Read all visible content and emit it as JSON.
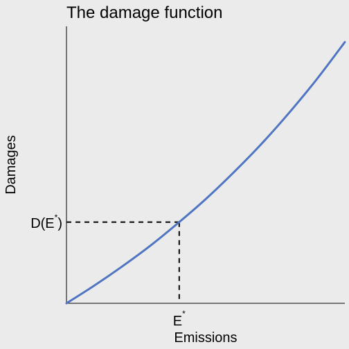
{
  "chart_data": {
    "type": "line",
    "title": "The damage function",
    "xlabel": "Emissions",
    "ylabel": "Damages",
    "xlim": [
      0,
      1
    ],
    "ylim": [
      0,
      1
    ],
    "grid": false,
    "legend": "none",
    "series": [
      {
        "function": "exponential",
        "x": [
          0,
          0.1,
          0.2,
          0.3,
          0.4,
          0.5,
          0.6,
          0.7,
          0.8,
          0.9,
          1.0
        ],
        "y": [
          0,
          0.064,
          0.133,
          0.207,
          0.289,
          0.376,
          0.472,
          0.575,
          0.688,
          0.81,
          0.943
        ],
        "color": "#4f75c2"
      }
    ],
    "marked_point": {
      "x": 0.405,
      "y": 0.293,
      "x_tick_label": "E",
      "x_tick_sup": "*",
      "y_tick_label_prefix": "D(E",
      "y_tick_sup": "*",
      "y_tick_label_suffix": ")",
      "line_style": "dashed"
    },
    "colors": {
      "background": "#ebebeb",
      "curve": "#4f75c2",
      "axes": "#000000"
    }
  }
}
